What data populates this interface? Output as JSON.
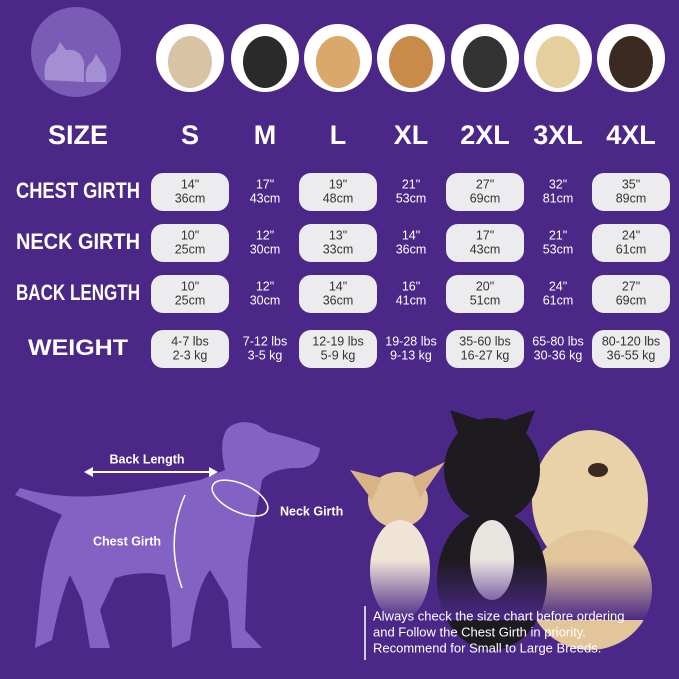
{
  "header": {
    "label": "SIZE",
    "sizes": [
      "S",
      "M",
      "L",
      "XL",
      "2XL",
      "3XL",
      "4XL"
    ]
  },
  "table": {
    "rows": [
      {
        "label": "CHEST GIRTH",
        "cells": [
          [
            "14\"",
            "36cm"
          ],
          [
            "17\"",
            "43cm"
          ],
          [
            "19\"",
            "48cm"
          ],
          [
            "21\"",
            "53cm"
          ],
          [
            "27\"",
            "69cm"
          ],
          [
            "32\"",
            "81cm"
          ],
          [
            "35\"",
            "89cm"
          ]
        ]
      },
      {
        "label": "NECK GIRTH",
        "cells": [
          [
            "10\"",
            "25cm"
          ],
          [
            "12\"",
            "30cm"
          ],
          [
            "13\"",
            "33cm"
          ],
          [
            "14\"",
            "36cm"
          ],
          [
            "17\"",
            "43cm"
          ],
          [
            "21\"",
            "53cm"
          ],
          [
            "24\"",
            "61cm"
          ]
        ]
      },
      {
        "label": "BACK LENGTH",
        "cells": [
          [
            "10\"",
            "25cm"
          ],
          [
            "12\"",
            "30cm"
          ],
          [
            "14\"",
            "36cm"
          ],
          [
            "16\"",
            "41cm"
          ],
          [
            "20\"",
            "51cm"
          ],
          [
            "24\"",
            "61cm"
          ],
          [
            "27\"",
            "69cm"
          ]
        ]
      },
      {
        "label": "WEIGHT",
        "cells": [
          [
            "4-7 lbs",
            "2-3 kg"
          ],
          [
            "7-12 lbs",
            "3-5 kg"
          ],
          [
            "12-19 lbs",
            "5-9 kg"
          ],
          [
            "19-28 lbs",
            "9-13 kg"
          ],
          [
            "35-60 lbs",
            "16-27 kg"
          ],
          [
            "65-80 lbs",
            "30-36 kg"
          ],
          [
            "80-120 lbs",
            "36-55 kg"
          ]
        ]
      }
    ]
  },
  "diagram": {
    "back_length": "Back Length",
    "neck_girth": "Neck Girth",
    "chest_girth": "Chest Girth"
  },
  "note": [
    "Always check the size chart before ordering",
    "and Follow the Chest Girth in priority.",
    "Recommend for Small to Large Breeds."
  ]
}
